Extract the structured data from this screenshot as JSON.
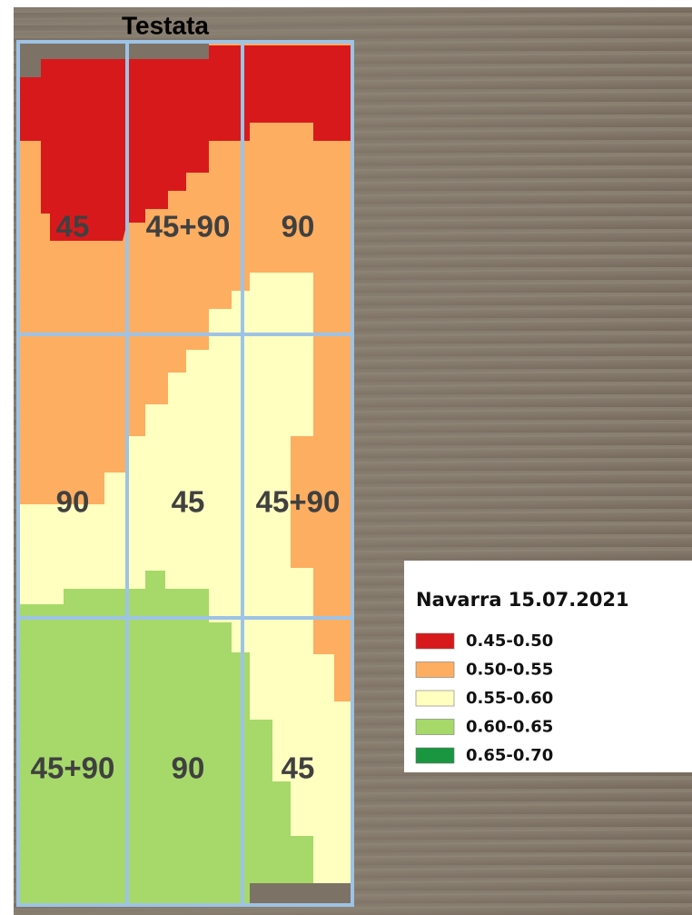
{
  "header": {
    "title": "Testata"
  },
  "zones": {
    "rows": [
      [
        "45",
        "45+90",
        "90"
      ],
      [
        "90",
        "45",
        "45+90"
      ],
      [
        "45+90",
        "90",
        "45"
      ]
    ]
  },
  "legend": {
    "title": "Navarra 15.07.2021",
    "items": [
      {
        "label": "0.45-0.50",
        "color": "#d7191c"
      },
      {
        "label": "0.50-0.55",
        "color": "#fdae61"
      },
      {
        "label": "0.55-0.60",
        "color": "#ffffc0"
      },
      {
        "label": "0.60-0.65",
        "color": "#a6d96a"
      },
      {
        "label": "0.65-0.70",
        "color": "#1a9641"
      }
    ]
  }
}
